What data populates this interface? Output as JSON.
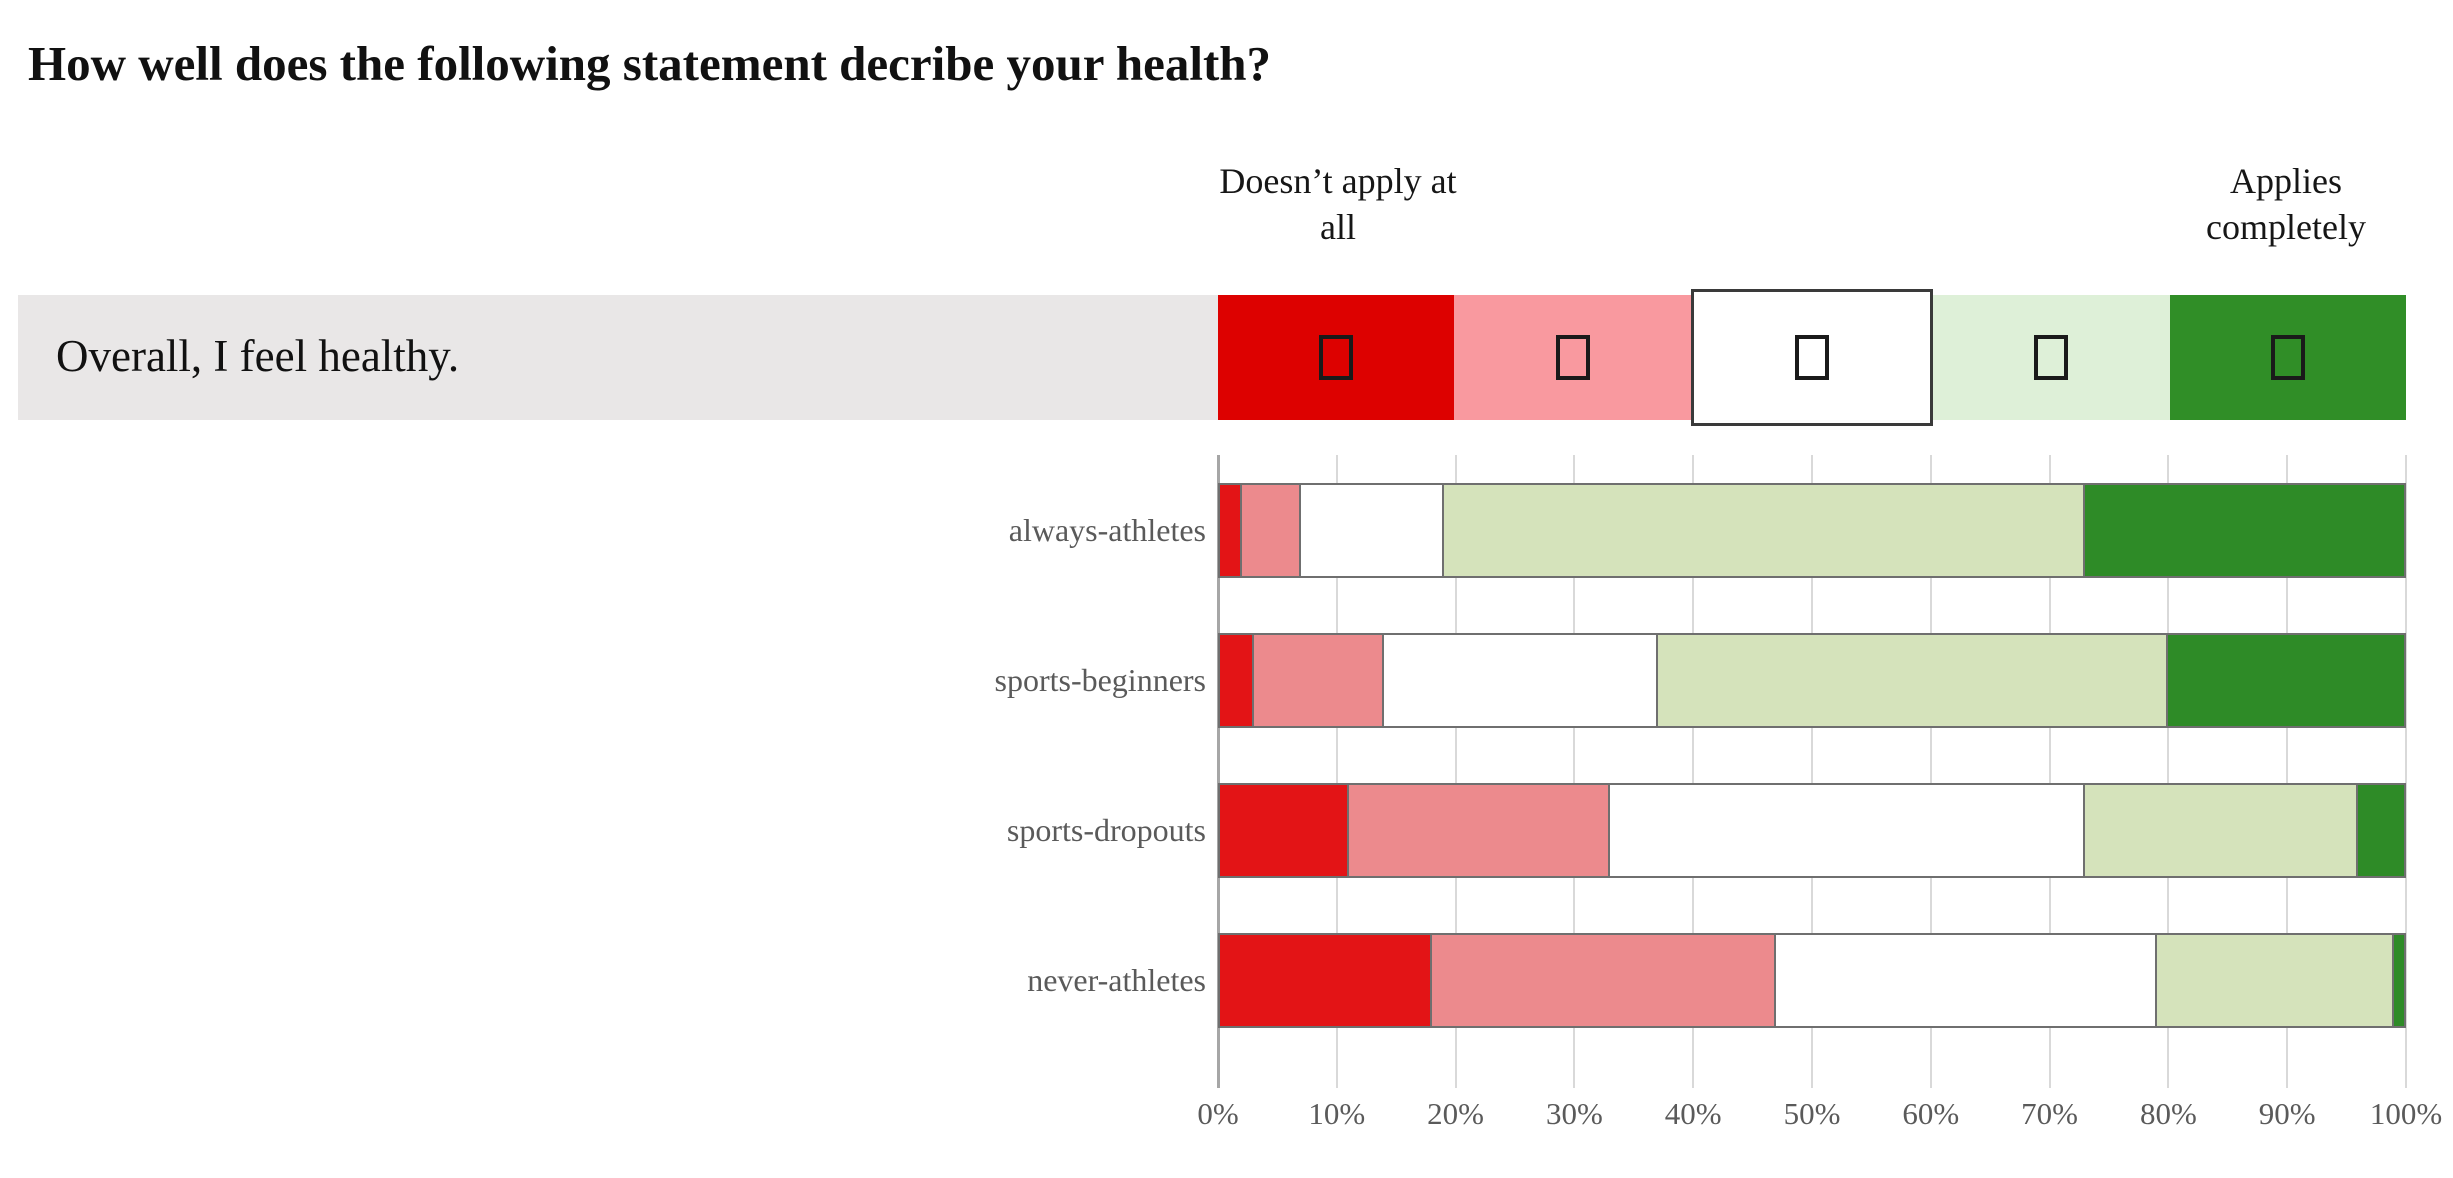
{
  "title": "How well does the following statement decribe your health?",
  "statement": {
    "text": "Overall, I feel healthy."
  },
  "scale": {
    "left_label": "Doesn’t apply at\nall",
    "right_label": "Applies\ncompletely",
    "levels": [
      {
        "name": "doesnt-apply-at-all",
        "color": "#dd0100"
      },
      {
        "name": "level-2",
        "color": "#f9999f"
      },
      {
        "name": "level-3-neutral",
        "color": "#ffffff"
      },
      {
        "name": "level-4",
        "color": "#def0d8"
      },
      {
        "name": "applies-completely",
        "color": "#308e27"
      }
    ]
  },
  "chart_data": {
    "type": "bar",
    "orientation": "horizontal-stacked",
    "title": "",
    "xlabel": "",
    "ylabel": "",
    "xlim": [
      0,
      100
    ],
    "grid": true,
    "categories": [
      "always-athletes",
      "sports-beginners",
      "sports-dropouts",
      "never-athletes"
    ],
    "series": [
      {
        "name": "Doesn’t apply at all",
        "color": "#e31416",
        "values": [
          2,
          3,
          11,
          18
        ]
      },
      {
        "name": "2",
        "color": "#ec8a8d",
        "values": [
          5,
          11,
          22,
          29
        ]
      },
      {
        "name": "3",
        "color": "#ffffff",
        "values": [
          12,
          23,
          40,
          32
        ]
      },
      {
        "name": "4",
        "color": "#d5e3bb",
        "values": [
          54,
          43,
          23,
          20
        ]
      },
      {
        "name": "Applies completely",
        "color": "#2e8b27",
        "values": [
          27,
          20,
          4,
          1
        ]
      }
    ],
    "x_ticks": [
      "0%",
      "10%",
      "20%",
      "30%",
      "40%",
      "50%",
      "60%",
      "70%",
      "80%",
      "90%",
      "100%"
    ]
  }
}
